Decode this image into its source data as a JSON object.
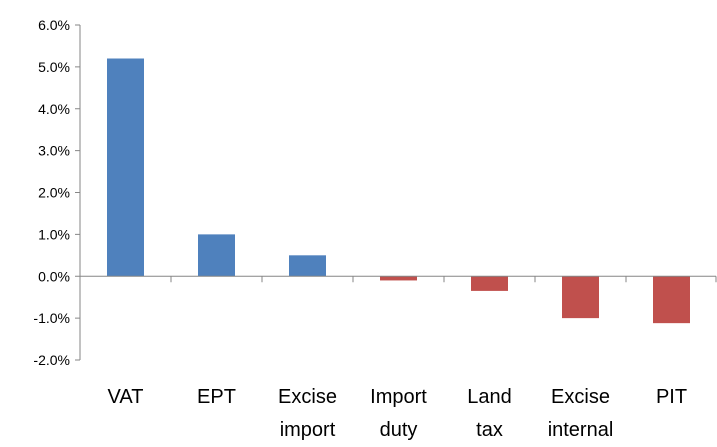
{
  "chart_data": {
    "type": "bar",
    "categories": [
      [
        "VAT"
      ],
      [
        "EPT"
      ],
      [
        "Excise",
        "import"
      ],
      [
        "Import",
        "duty"
      ],
      [
        "Land",
        "tax"
      ],
      [
        "Excise",
        "internal"
      ],
      [
        "PIT"
      ]
    ],
    "values": [
      5.2,
      1.0,
      0.5,
      -0.1,
      -0.35,
      -1.0,
      -1.12
    ],
    "ylim": [
      -2.0,
      6.0
    ],
    "yticks": [
      "-2.0%",
      "-1.0%",
      "0.0%",
      "1.0%",
      "2.0%",
      "3.0%",
      "4.0%",
      "5.0%",
      "6.0%"
    ],
    "ytick_values": [
      -2,
      -1,
      0,
      1,
      2,
      3,
      4,
      5,
      6
    ],
    "grid": false,
    "legend": "none",
    "colors": {
      "positive": "#4f81bd",
      "negative": "#c0504d",
      "axis": "#868686",
      "text": "#000000"
    }
  }
}
